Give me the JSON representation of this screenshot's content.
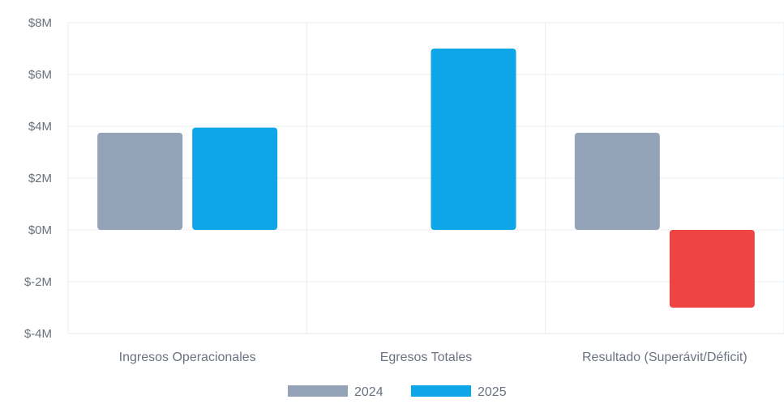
{
  "chart_data": {
    "type": "bar",
    "categories": [
      "Ingresos Operacionales",
      "Egresos Totales",
      "Resultado (Superávit/Déficit)"
    ],
    "series": [
      {
        "name": "2024",
        "values": [
          3.75,
          0,
          3.75
        ],
        "color": "#94a3b8"
      },
      {
        "name": "2025",
        "values": [
          3.95,
          7.0,
          -3.0
        ],
        "color": "#0ea5e9",
        "negative_color": "#ef4444"
      }
    ],
    "y_ticks": [
      "$8M",
      "$6M",
      "$4M",
      "$2M",
      "$0M",
      "$-2M",
      "$-4M"
    ],
    "ylim": [
      -4,
      8
    ],
    "title": "",
    "xlabel": "",
    "ylabel": "",
    "grid": true,
    "legend_position": "bottom"
  }
}
